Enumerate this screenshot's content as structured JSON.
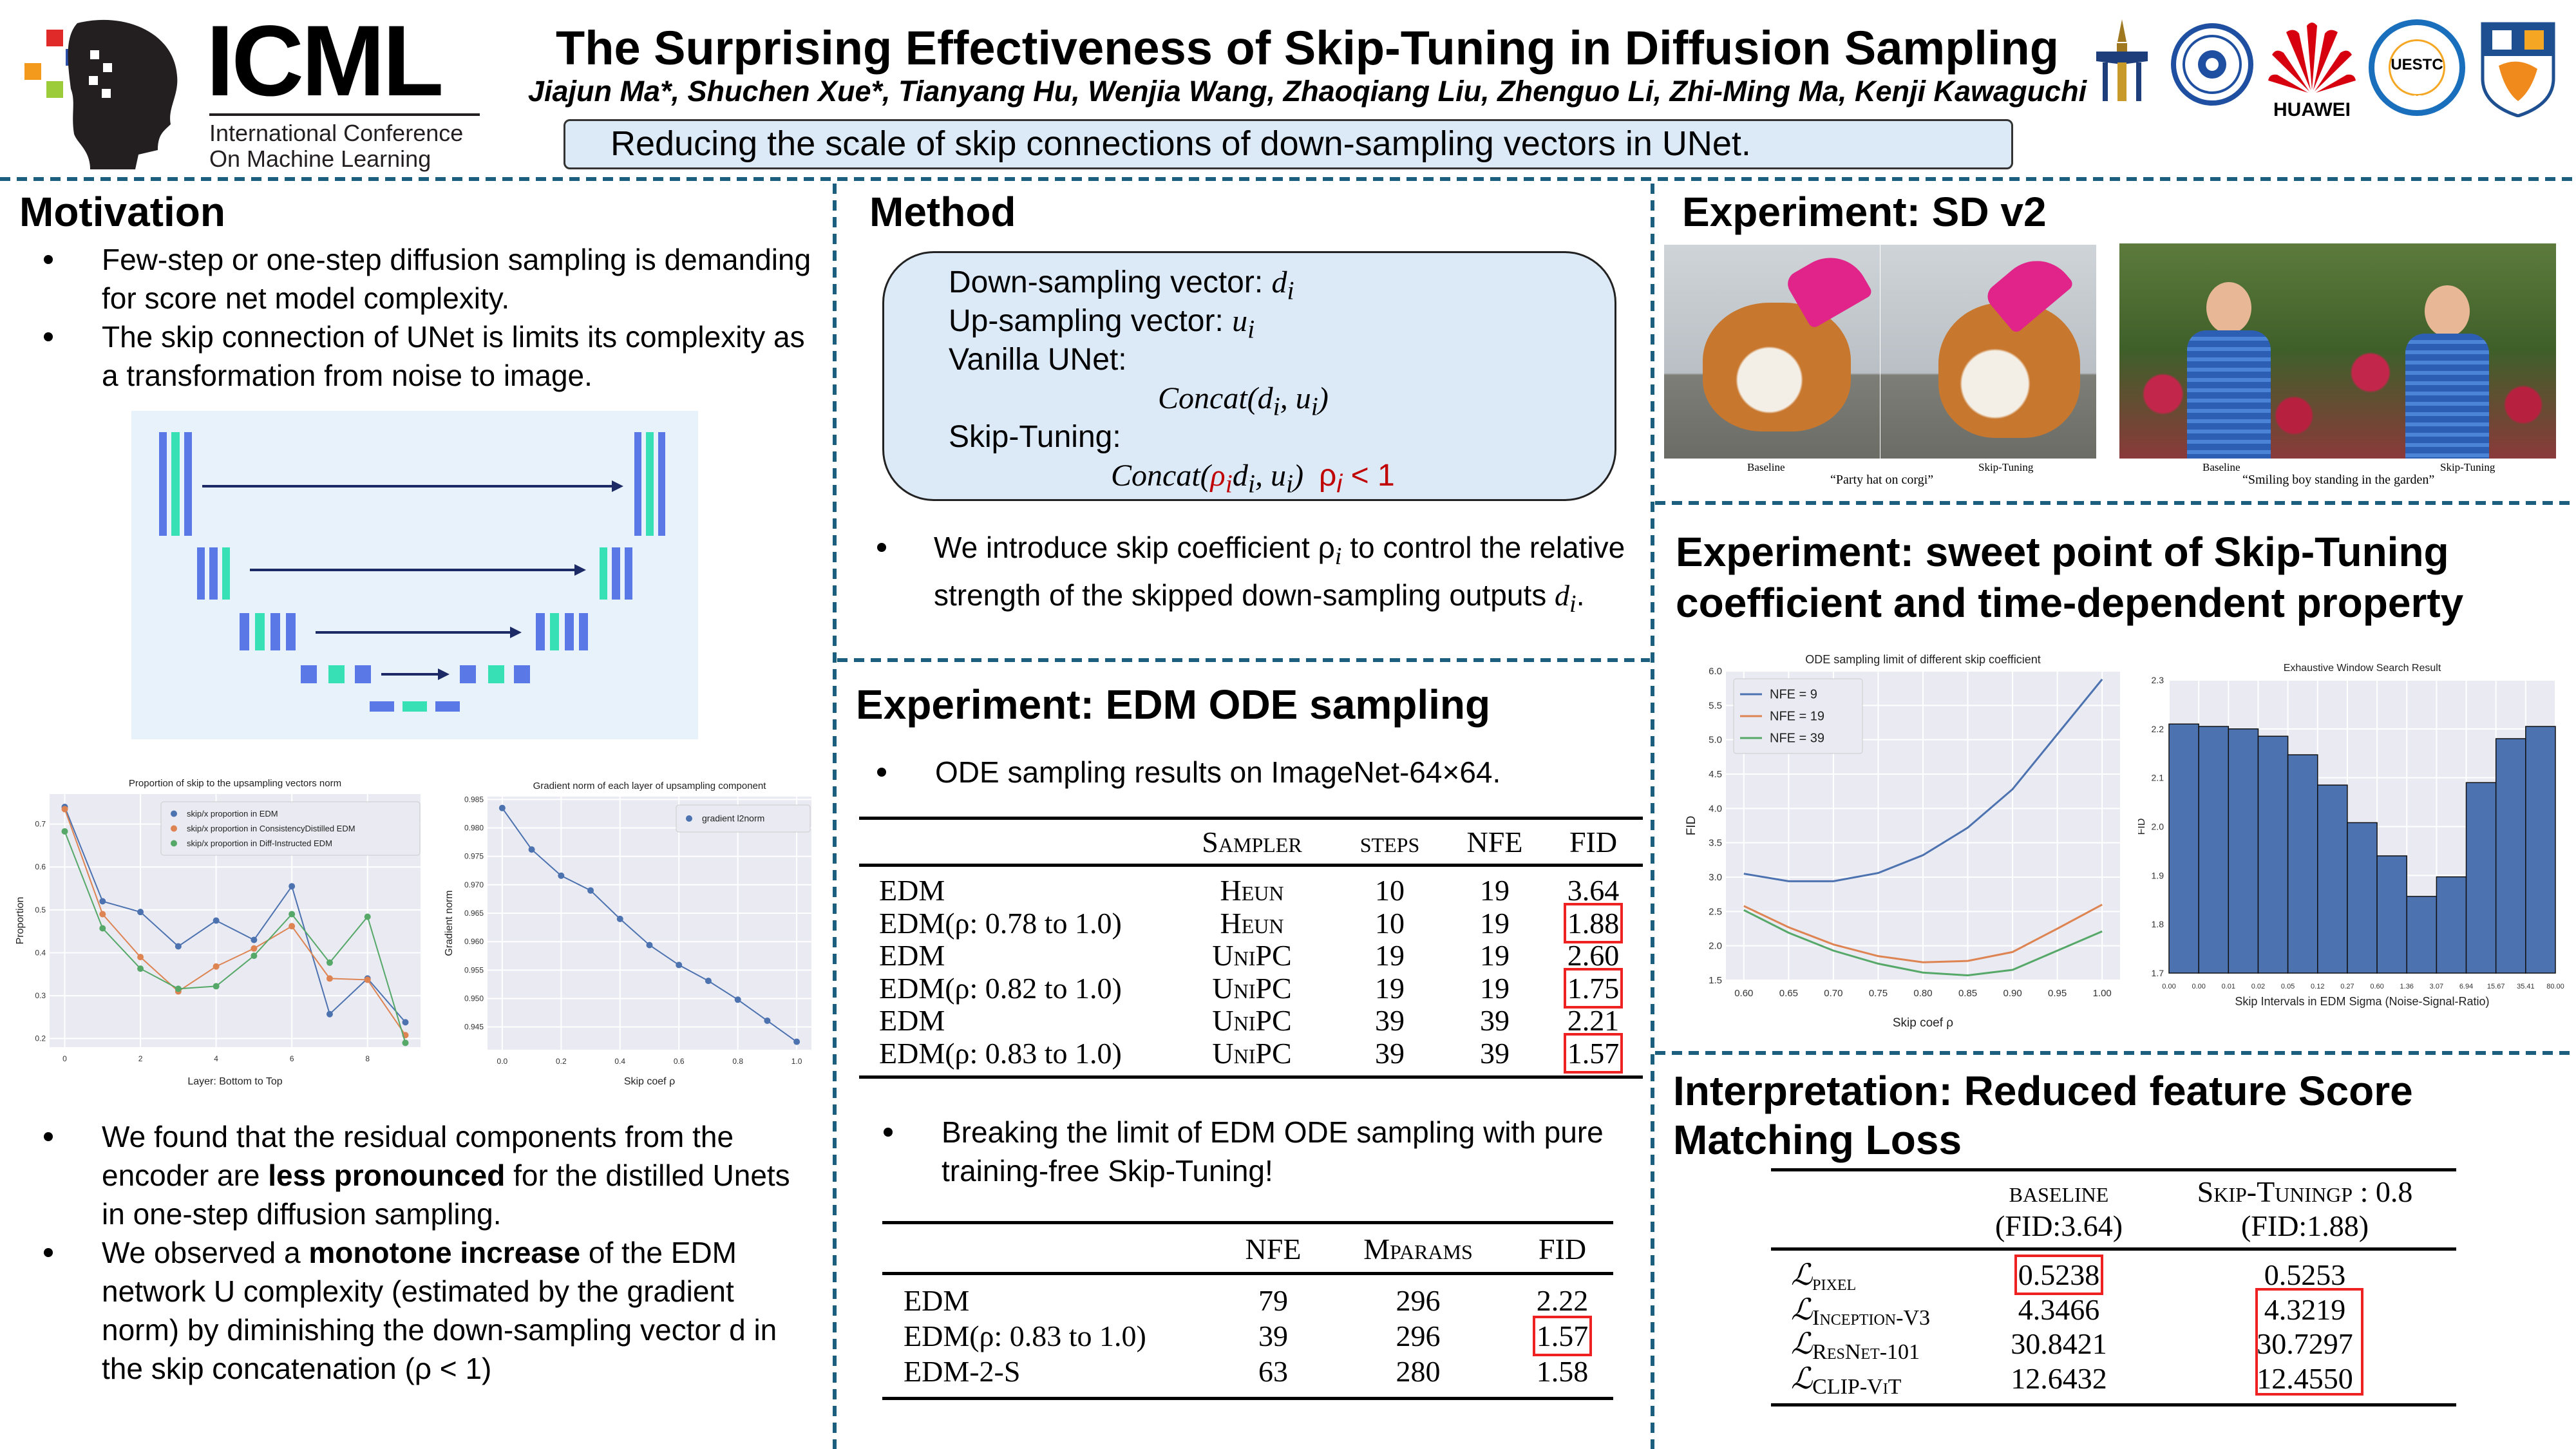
{
  "header": {
    "logo_text": "ICML",
    "logo_sub1": "International Conference",
    "logo_sub2": "On Machine Learning",
    "title": "The Surprising Effectiveness of Skip-Tuning in Diffusion Sampling",
    "authors": "Jiajun Ma*, Shuchen Xue*, Tianyang Hu, Wenjia Wang, Zhaoqiang Liu, Zhenguo Li, Zhi-Ming Ma, Kenji Kawaguchi",
    "tagline": "Reducing the scale of skip connections of down-sampling vectors in UNet.",
    "affiliation_logos": [
      "university-crest-logo",
      "academy-seal-logo",
      "huawei-logo",
      "uestc-logo",
      "university-shield-logo"
    ],
    "huawei_text": "HUAWEI",
    "uestc_text": "UESTC",
    "uestc_year": "1956"
  },
  "colors": {
    "accent": "#1b5e7e",
    "box_bg": "#dce9f7",
    "highlight": "#e22222",
    "series_blue": "#4c72b0",
    "series_orange": "#dd8452",
    "series_green": "#55a868"
  },
  "motivation": {
    "title": "Motivation",
    "bullets": [
      "Few-step or one-step diffusion sampling is demanding for score net model complexity.",
      "The skip connection of UNet is limits its complexity as a transformation from noise to image."
    ],
    "bullets2": [
      {
        "pre": "We found that the residual components from the encoder are ",
        "bold": "less pronounced",
        "post": " for the distilled Unets in one-step diffusion sampling."
      },
      {
        "pre": "We observed a ",
        "bold": "monotone increase",
        "post": " of the EDM network U complexity (estimated by the gradient norm) by diminishing the down-sampling vector d in the skip concatenation (ρ < 1)"
      }
    ]
  },
  "method": {
    "title": "Method",
    "down_label": "Down-sampling vector: ",
    "up_label": "Up-sampling vector: ",
    "vanilla_label": "Vanilla UNet:",
    "skip_label": "Skip-Tuning:",
    "var_d": "d",
    "var_u": "u",
    "sub_i": "i",
    "rho": "ρ",
    "concat": "Concat",
    "constraint": "< 1",
    "bullet_pre": "We introduce skip coefficient ",
    "bullet_mid": " to control the relative strength of the skipped down-sampling outputs ",
    "bullet_end": "."
  },
  "edm": {
    "title": "Experiment: EDM ODE sampling",
    "bullet": "ODE sampling results on ImageNet-64×64.",
    "table1": {
      "headers": [
        "",
        "Sampler",
        "steps",
        "NFE",
        "FID"
      ],
      "rows": [
        {
          "label": "EDM",
          "sampler": "Heun",
          "steps": "10",
          "nfe": "19",
          "fid": "3.64",
          "highlight": false
        },
        {
          "label": "EDM(ρ: 0.78 to 1.0)",
          "sampler": "Heun",
          "steps": "10",
          "nfe": "19",
          "fid": "1.88",
          "highlight": true
        },
        {
          "label": "EDM",
          "sampler": "UniPC",
          "steps": "19",
          "nfe": "19",
          "fid": "2.60",
          "highlight": false
        },
        {
          "label": "EDM(ρ: 0.82 to 1.0)",
          "sampler": "UniPC",
          "steps": "19",
          "nfe": "19",
          "fid": "1.75",
          "highlight": true
        },
        {
          "label": "EDM",
          "sampler": "UniPC",
          "steps": "39",
          "nfe": "39",
          "fid": "2.21",
          "highlight": false
        },
        {
          "label": "EDM(ρ: 0.83 to 1.0)",
          "sampler": "UniPC",
          "steps": "39",
          "nfe": "39",
          "fid": "1.57",
          "highlight": true
        }
      ]
    },
    "bullet2": "Breaking the limit of EDM ODE sampling with pure training-free Skip-Tuning!",
    "table2": {
      "headers": [
        "",
        "NFE",
        "Mparams",
        "FID"
      ],
      "rows": [
        {
          "label": "EDM",
          "nfe": "79",
          "params": "296",
          "fid": "2.22",
          "highlight": false
        },
        {
          "label": "EDM(ρ: 0.83 to 1.0)",
          "nfe": "39",
          "params": "296",
          "fid": "1.57",
          "highlight": true
        },
        {
          "label": "EDM-2-S",
          "nfe": "63",
          "params": "280",
          "fid": "1.58",
          "highlight": false
        }
      ]
    }
  },
  "sd": {
    "title": "Experiment: SD v2",
    "pairs": [
      {
        "left": "Baseline",
        "right": "Skip-Tuning",
        "prompt": "“Party hat on corgi”"
      },
      {
        "left": "Baseline",
        "right": "Skip-Tuning",
        "prompt": "“Smiling boy standing in the garden”"
      }
    ]
  },
  "sweet": {
    "title_line1": "Experiment: sweet point of Skip-Tuning",
    "title_line2": "coefficient and time-dependent property"
  },
  "interp": {
    "title_line1": "Interpretation: Reduced feature Score",
    "title_line2": "Matching Loss",
    "headers": [
      [
        "",
        ""
      ],
      [
        "baseline",
        "(FID:3.64)"
      ],
      [
        "Skip-Tuningρ : 0.8",
        "(FID:1.88)"
      ]
    ],
    "rows": [
      {
        "sym": "ℒ",
        "sub": "pixel",
        "base": "0.5238",
        "skip": "0.5253",
        "base_hl": true
      },
      {
        "sym": "ℒ",
        "sub": "Inception-V3",
        "base": "4.3466",
        "skip": "4.3219",
        "base_hl": false
      },
      {
        "sym": "ℒ",
        "sub": "ResNet-101",
        "base": "30.8421",
        "skip": "30.7297",
        "base_hl": false
      },
      {
        "sym": "ℒ",
        "sub": "CLIP-ViT",
        "base": "12.6432",
        "skip": "12.4550",
        "base_hl": false
      }
    ]
  },
  "chart_data": [
    {
      "type": "line",
      "title": "Proportion of skip to the upsampling vectors norm",
      "xlabel": "Layer: Bottom to Top",
      "ylabel": "Proportion",
      "x": [
        0,
        1,
        2,
        3,
        4,
        5,
        6,
        7,
        8,
        9
      ],
      "xlim": [
        -0.4,
        9.4
      ],
      "ylim": [
        0.18,
        0.77
      ],
      "xticks": [
        "0",
        "2",
        "4",
        "6",
        "8"
      ],
      "yticks": [
        "0.2",
        "0.3",
        "0.4",
        "0.5",
        "0.6",
        "0.7"
      ],
      "grid": true,
      "markers": true,
      "legend": "top-right",
      "series": [
        {
          "name": "skip/x proportion in EDM",
          "color": "#4c72b0",
          "values": [
            0.74,
            0.52,
            0.495,
            0.415,
            0.475,
            0.43,
            0.555,
            0.257,
            0.34,
            0.238
          ]
        },
        {
          "name": "skip/x proportion in ConsistencyDistilled EDM",
          "color": "#dd8452",
          "values": [
            0.735,
            0.49,
            0.39,
            0.31,
            0.368,
            0.41,
            0.462,
            0.34,
            0.337,
            0.208
          ]
        },
        {
          "name": "skip/x proportion in Diff-Instructed EDM",
          "color": "#55a868",
          "values": [
            0.683,
            0.457,
            0.363,
            0.316,
            0.322,
            0.393,
            0.49,
            0.377,
            0.484,
            0.19
          ]
        }
      ]
    },
    {
      "type": "line",
      "title": "Gradient norm of each layer of upsampling component",
      "xlabel": "Skip coef ρ",
      "ylabel": "Gradient norm",
      "x": [
        0,
        0.1,
        0.2,
        0.3,
        0.4,
        0.5,
        0.6,
        0.7,
        0.8,
        0.9,
        1.0
      ],
      "xlim": [
        -0.05,
        1.05
      ],
      "ylim": [
        0.941,
        0.9855
      ],
      "xticks": [
        "0.0",
        "0.2",
        "0.4",
        "0.6",
        "0.8",
        "1.0"
      ],
      "yticks": [
        "0.945",
        "0.950",
        "0.955",
        "0.960",
        "0.965",
        "0.970",
        "0.975",
        "0.980",
        "0.985"
      ],
      "grid": true,
      "markers": true,
      "legend": "top-right",
      "series": [
        {
          "name": "gradient l2norm",
          "color": "#4c72b0",
          "values": [
            0.9835,
            0.9762,
            0.9716,
            0.969,
            0.964,
            0.9594,
            0.9559,
            0.9531,
            0.9498,
            0.9461,
            0.9424
          ]
        }
      ]
    },
    {
      "type": "line",
      "title": "ODE sampling limit of different skip coefficient",
      "xlabel": "Skip coef ρ",
      "ylabel": "FID",
      "x": [
        0.6,
        0.65,
        0.7,
        0.75,
        0.8,
        0.85,
        0.9,
        0.95,
        1.0
      ],
      "xlim": [
        0.58,
        1.02
      ],
      "ylim": [
        1.5,
        6.0
      ],
      "xticks": [
        "0.60",
        "0.65",
        "0.70",
        "0.75",
        "0.80",
        "0.85",
        "0.90",
        "0.95",
        "1.00"
      ],
      "yticks": [
        "1.5",
        "2.0",
        "2.5",
        "3.0",
        "3.5",
        "4.0",
        "4.5",
        "5.0",
        "5.5",
        "6.0"
      ],
      "grid": true,
      "markers": false,
      "legend": "top-left",
      "series": [
        {
          "name": "NFE = 9",
          "color": "#4c72b0",
          "values": [
            3.05,
            2.94,
            2.94,
            3.06,
            3.32,
            3.72,
            4.28,
            5.08,
            5.88
          ]
        },
        {
          "name": "NFE = 19",
          "color": "#dd8452",
          "values": [
            2.58,
            2.27,
            2.02,
            1.85,
            1.76,
            1.78,
            1.91,
            2.25,
            2.6
          ]
        },
        {
          "name": "NFE = 39",
          "color": "#55a868",
          "values": [
            2.52,
            2.19,
            1.93,
            1.74,
            1.61,
            1.57,
            1.65,
            1.93,
            2.21
          ]
        }
      ]
    },
    {
      "type": "bar",
      "title": "Exhaustive Window Search Result",
      "xlabel": "Skip Intervals in EDM Sigma (Noise-Signal-Ratio)",
      "ylabel": "FID",
      "edges": [
        "0.00",
        "0.00",
        "0.01",
        "0.02",
        "0.05",
        "0.12",
        "0.27",
        "0.60",
        "1.36",
        "3.07",
        "6.94",
        "15.67",
        "35.41",
        "80.00"
      ],
      "values": [
        2.21,
        2.205,
        2.2,
        2.185,
        2.147,
        2.085,
        2.008,
        1.94,
        1.857,
        1.897,
        2.09,
        2.18,
        2.205
      ],
      "ylim": [
        1.7,
        2.3
      ],
      "yticks": [
        "1.7",
        "1.8",
        "1.9",
        "2.0",
        "2.1",
        "2.2",
        "2.3"
      ],
      "grid": true,
      "color": "#4c72b0"
    }
  ]
}
